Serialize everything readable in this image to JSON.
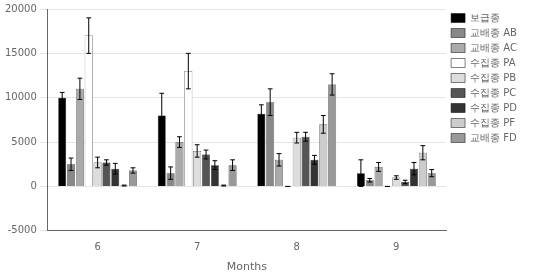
{
  "chart_data": {
    "type": "bar",
    "xlabel": "Months",
    "categories": [
      "6",
      "7",
      "8",
      "9"
    ],
    "series": [
      {
        "name": "보급종",
        "color": "#000000",
        "values": [
          10000,
          8000,
          8200,
          1500
        ],
        "errors": [
          600,
          2500,
          1000,
          1500
        ]
      },
      {
        "name": "교배종 AB",
        "color": "#888888",
        "values": [
          2500,
          1500,
          9500,
          700
        ],
        "errors": [
          700,
          700,
          1500,
          200
        ]
      },
      {
        "name": "교배종 AC",
        "color": "#aaaaaa",
        "values": [
          11000,
          5000,
          3000,
          2200
        ],
        "errors": [
          1200,
          600,
          700,
          500
        ]
      },
      {
        "name": "수집종 PA",
        "color": "#ffffff",
        "values": [
          17000,
          13000,
          0,
          0
        ],
        "errors": [
          2000,
          2000,
          0,
          0
        ]
      },
      {
        "name": "수집종 PB",
        "color": "#dddddd",
        "values": [
          2700,
          4000,
          5500,
          1000
        ],
        "errors": [
          600,
          700,
          600,
          200
        ]
      },
      {
        "name": "수집종 PC",
        "color": "#555555",
        "values": [
          2700,
          3600,
          5600,
          500
        ],
        "errors": [
          300,
          500,
          500,
          200
        ]
      },
      {
        "name": "수집종 PD",
        "color": "#333333",
        "values": [
          2000,
          2400,
          3000,
          2000
        ],
        "errors": [
          600,
          500,
          500,
          700
        ]
      },
      {
        "name": "수집종 PF",
        "color": "#cccccc",
        "values": [
          100,
          100,
          7000,
          3800
        ],
        "errors": [
          50,
          50,
          1000,
          800
        ]
      },
      {
        "name": "교배종 FD",
        "color": "#999999",
        "values": [
          1800,
          2400,
          11500,
          1500
        ],
        "errors": [
          300,
          600,
          1200,
          400
        ]
      }
    ],
    "ylim": [
      -5000,
      20000
    ],
    "yticks": [
      -5000,
      0,
      5000,
      10000,
      15000,
      20000
    ],
    "grid": true,
    "legend": "right"
  }
}
